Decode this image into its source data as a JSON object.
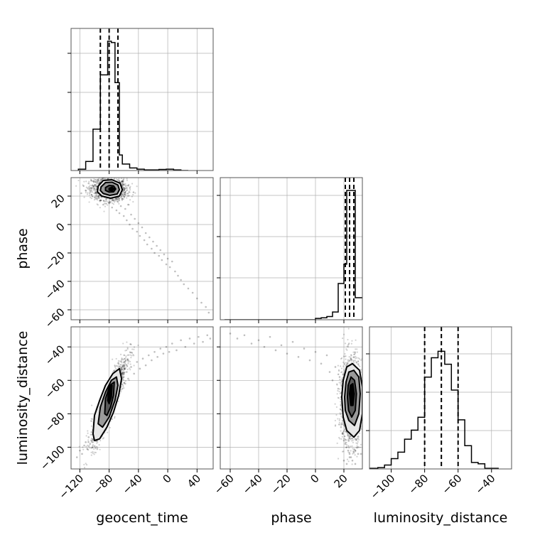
{
  "chart_data": {
    "type": "corner",
    "parameters": [
      "geocent_time",
      "phase",
      "luminosity_distance"
    ],
    "ticks": {
      "geocent_time": [
        -120,
        -80,
        -40,
        0,
        40
      ],
      "phase": [
        -60,
        -40,
        -20,
        0,
        20
      ],
      "luminosity_distance": [
        -100,
        -80,
        -60,
        -40
      ]
    },
    "tick_labels": {
      "geocent_time": [
        "−120",
        "−80",
        "−40",
        "0",
        "40"
      ],
      "phase": [
        "−60",
        "−40",
        "−20",
        "0",
        "20"
      ],
      "luminosity_distance": [
        "−100",
        "−80",
        "−60",
        "−40"
      ]
    },
    "ranges": {
      "geocent_time": [
        -132,
        62
      ],
      "phase": [
        -67,
        33
      ],
      "luminosity_distance": [
        -113,
        -28
      ]
    },
    "histograms": {
      "geocent_time": {
        "edges": [
          -122,
          -112,
          -102,
          -92,
          -82,
          -77,
          -72,
          -66,
          -62,
          -52,
          -42,
          -32,
          -22,
          -12,
          -2,
          8,
          18,
          28
        ],
        "counts": [
          0.01,
          0.07,
          0.32,
          0.74,
          1.0,
          0.99,
          0.68,
          0.12,
          0.05,
          0.02,
          0.01,
          0.005,
          0.005,
          0.008,
          0.01,
          0.005,
          0.0
        ],
        "quantiles": [
          -92,
          -80,
          -68
        ]
      },
      "phase": {
        "edges": [
          -64,
          -60,
          -40,
          -20,
          0,
          4,
          8,
          12,
          16,
          20,
          22,
          24,
          28,
          30,
          34
        ],
        "counts": [
          0.0,
          0.0,
          0.0,
          0.0,
          0.01,
          0.015,
          0.025,
          0.06,
          0.28,
          0.43,
          1.0,
          1.0,
          0.17,
          0.17
        ],
        "quantiles": [
          21,
          24,
          27
        ]
      },
      "luminosity_distance": {
        "edges": [
          -113,
          -108,
          -104,
          -100,
          -96,
          -92,
          -88,
          -84,
          -80,
          -76,
          -72,
          -68,
          -64,
          -60,
          -56,
          -52,
          -48,
          -44,
          -40,
          -36
        ],
        "counts": [
          0.005,
          0.01,
          0.03,
          0.08,
          0.13,
          0.23,
          0.3,
          0.4,
          0.71,
          0.86,
          0.91,
          0.81,
          0.61,
          0.38,
          0.18,
          0.05,
          0.04,
          0.005,
          0.005
        ],
        "quantiles": [
          -80,
          -70,
          -60
        ]
      }
    },
    "scatter_sets": {
      "geocent_time__phase": {
        "x": [
          -118,
          -112,
          -108,
          -104,
          -101,
          -99,
          -96,
          -94,
          -92,
          -90,
          -88,
          -86,
          -84,
          -82,
          -80,
          -78,
          -76,
          -74,
          -72,
          -70,
          -68,
          -66,
          -64,
          -62,
          -60,
          -58,
          -56,
          -54,
          -52,
          -50,
          -48,
          -45,
          -42,
          -40,
          -38,
          -35,
          -32,
          -30,
          -28,
          -25,
          -22,
          -20,
          -18,
          -15,
          -12,
          -10,
          -8,
          -5,
          -2,
          0,
          3,
          6,
          10,
          14,
          18,
          22,
          28,
          34,
          40,
          46,
          52,
          56
        ],
        "y": [
          22,
          24,
          29,
          21,
          27,
          19,
          25,
          22,
          17,
          26,
          14,
          21,
          18,
          23,
          15,
          20,
          12,
          17,
          22,
          10,
          16,
          8,
          13,
          18,
          6,
          11,
          3,
          14,
          0,
          7,
          -3,
          4,
          -5,
          1,
          -8,
          -2,
          -11,
          -6,
          -14,
          -9,
          -17,
          -12,
          -20,
          -15,
          -22,
          -18,
          -25,
          -21,
          -28,
          -24,
          -30,
          -26,
          -33,
          -36,
          -39,
          -42,
          -45,
          -48,
          -52,
          -55,
          -58,
          -62
        ]
      },
      "geocent_time__luminosity_distance": {
        "x": [
          -124,
          -120,
          -117,
          -114,
          -112,
          -110,
          -108,
          -106,
          -104,
          -102,
          -100,
          -98,
          -96,
          -94,
          -92,
          -90,
          -88,
          -86,
          -84,
          -82,
          -80,
          -78,
          -76,
          -74,
          -72,
          -70,
          -68,
          -66,
          -64,
          -62,
          -60,
          -58,
          -56,
          -54,
          -50,
          -46,
          -42,
          -38,
          -34,
          -30,
          -26,
          -22,
          -18,
          -14,
          -10,
          -6,
          -2,
          2,
          6,
          12,
          18,
          24,
          30,
          36,
          42,
          48,
          54,
          58
        ],
        "y": [
          -106,
          -102,
          -104,
          -99,
          -97,
          -101,
          -94,
          -98,
          -91,
          -95,
          -88,
          -92,
          -85,
          -89,
          -82,
          -86,
          -79,
          -83,
          -76,
          -80,
          -73,
          -77,
          -70,
          -74,
          -67,
          -71,
          -64,
          -68,
          -61,
          -65,
          -58,
          -62,
          -55,
          -59,
          -52,
          -56,
          -49,
          -53,
          -47,
          -51,
          -45,
          -48,
          -43,
          -46,
          -41,
          -44,
          -40,
          -43,
          -38,
          -42,
          -36,
          -40,
          -35,
          -38,
          -34,
          -37,
          -33,
          -35
        ]
      },
      "phase__luminosity_distance": {
        "x": [
          -60,
          -55,
          -50,
          -45,
          -40,
          -36,
          -32,
          -28,
          -24,
          -20,
          -16,
          -12,
          -8,
          -4,
          0,
          4,
          8,
          10,
          12,
          14,
          16,
          17,
          18,
          19,
          20,
          21,
          22,
          23,
          24,
          25,
          26,
          27,
          28,
          29,
          30,
          31,
          32,
          18,
          19,
          20,
          21,
          22,
          23,
          24,
          25,
          26,
          27,
          28,
          29,
          30,
          31,
          32,
          20,
          22,
          24,
          26,
          28,
          30
        ],
        "y": [
          -32,
          -35,
          -33,
          -38,
          -36,
          -40,
          -34,
          -42,
          -39,
          -44,
          -37,
          -46,
          -41,
          -48,
          -43,
          -50,
          -45,
          -55,
          -60,
          -52,
          -65,
          -58,
          -70,
          -62,
          -75,
          -66,
          -80,
          -68,
          -85,
          -72,
          -90,
          -76,
          -95,
          -78,
          -100,
          -82,
          -104,
          -88,
          -92,
          -96,
          -98,
          -100,
          -102,
          -104,
          -106,
          -62,
          -64,
          -56,
          -58,
          -54,
          -60,
          -66,
          -108,
          -110,
          -106,
          -108,
          -110,
          -104
        ]
      }
    },
    "density_clusters": {
      "geocent_time__phase": {
        "cx": -80,
        "cy": 25,
        "sx": 12,
        "sy": 4,
        "rho": -0.1
      },
      "geocent_time__luminosity_distance": {
        "cx": -80,
        "cy": -72,
        "sx": 12,
        "sy": 13,
        "rho": 0.9
      },
      "phase__luminosity_distance": {
        "cx": 25,
        "cy": -72,
        "sx": 4,
        "sy": 13,
        "rho": 0.0
      }
    },
    "contours": {
      "geocent_time__phase": [
        [
          [
            -95,
            27
          ],
          [
            -88,
            31
          ],
          [
            -76,
            31.5
          ],
          [
            -65,
            29
          ],
          [
            -62,
            24.5
          ],
          [
            -66,
            20
          ],
          [
            -78,
            18.5
          ],
          [
            -90,
            20
          ],
          [
            -96,
            23
          ]
        ],
        [
          [
            -91,
            26.5
          ],
          [
            -85,
            29.5
          ],
          [
            -76,
            29.8
          ],
          [
            -68,
            27.8
          ],
          [
            -66,
            24.5
          ],
          [
            -69,
            21.5
          ],
          [
            -79,
            20.5
          ],
          [
            -88,
            21.8
          ],
          [
            -92,
            24
          ]
        ],
        [
          [
            -85,
            26
          ],
          [
            -80,
            27.5
          ],
          [
            -74,
            27.2
          ],
          [
            -71,
            25
          ],
          [
            -74,
            23
          ],
          [
            -80,
            22.8
          ],
          [
            -85,
            24
          ]
        ],
        [
          [
            -80,
            25.5
          ],
          [
            -76,
            26.3
          ],
          [
            -73,
            25
          ],
          [
            -76,
            23.8
          ],
          [
            -80,
            24.2
          ]
        ]
      ],
      "geocent_time__luminosity_distance": [
        [
          [
            -102,
            -92
          ],
          [
            -100,
            -81
          ],
          [
            -93,
            -72
          ],
          [
            -85,
            -63
          ],
          [
            -75,
            -56
          ],
          [
            -66,
            -53
          ],
          [
            -63,
            -59
          ],
          [
            -67,
            -69
          ],
          [
            -74,
            -79
          ],
          [
            -83,
            -88
          ],
          [
            -93,
            -95
          ],
          [
            -100,
            -96
          ]
        ],
        [
          [
            -95,
            -86
          ],
          [
            -92,
            -76
          ],
          [
            -85,
            -67
          ],
          [
            -77,
            -60
          ],
          [
            -70,
            -58
          ],
          [
            -68,
            -63
          ],
          [
            -72,
            -72
          ],
          [
            -80,
            -82
          ],
          [
            -89,
            -88
          ]
        ],
        [
          [
            -86,
            -80
          ],
          [
            -85,
            -71
          ],
          [
            -79,
            -63
          ],
          [
            -73,
            -61
          ],
          [
            -74,
            -69
          ],
          [
            -78,
            -76
          ],
          [
            -83,
            -81
          ]
        ],
        [
          [
            -82,
            -72
          ],
          [
            -80,
            -64
          ],
          [
            -76,
            -63
          ],
          [
            -77,
            -70
          ],
          [
            -80,
            -74
          ]
        ]
      ],
      "phase__luminosity_distance": [
        [
          [
            18.5,
            -70
          ],
          [
            19.5,
            -60
          ],
          [
            22,
            -52
          ],
          [
            26,
            -50
          ],
          [
            31,
            -54
          ],
          [
            33,
            -64
          ],
          [
            33,
            -80
          ],
          [
            31,
            -90
          ],
          [
            27,
            -94
          ],
          [
            22,
            -90
          ],
          [
            19.5,
            -82
          ]
        ],
        [
          [
            20.5,
            -70
          ],
          [
            21.5,
            -61
          ],
          [
            23.5,
            -55
          ],
          [
            27,
            -54
          ],
          [
            30.5,
            -58
          ],
          [
            31.5,
            -68
          ],
          [
            30.5,
            -80
          ],
          [
            27.5,
            -87
          ],
          [
            23.5,
            -84
          ],
          [
            21,
            -78
          ]
        ],
        [
          [
            22.5,
            -70
          ],
          [
            23,
            -63
          ],
          [
            25,
            -58
          ],
          [
            27.5,
            -60
          ],
          [
            28.8,
            -68
          ],
          [
            28,
            -78
          ],
          [
            25.5,
            -82
          ],
          [
            23.3,
            -78
          ]
        ],
        [
          [
            24,
            -68
          ],
          [
            24.6,
            -63
          ],
          [
            26.3,
            -62
          ],
          [
            27.3,
            -68
          ],
          [
            26.4,
            -75
          ],
          [
            24.8,
            -75
          ]
        ]
      ]
    }
  }
}
